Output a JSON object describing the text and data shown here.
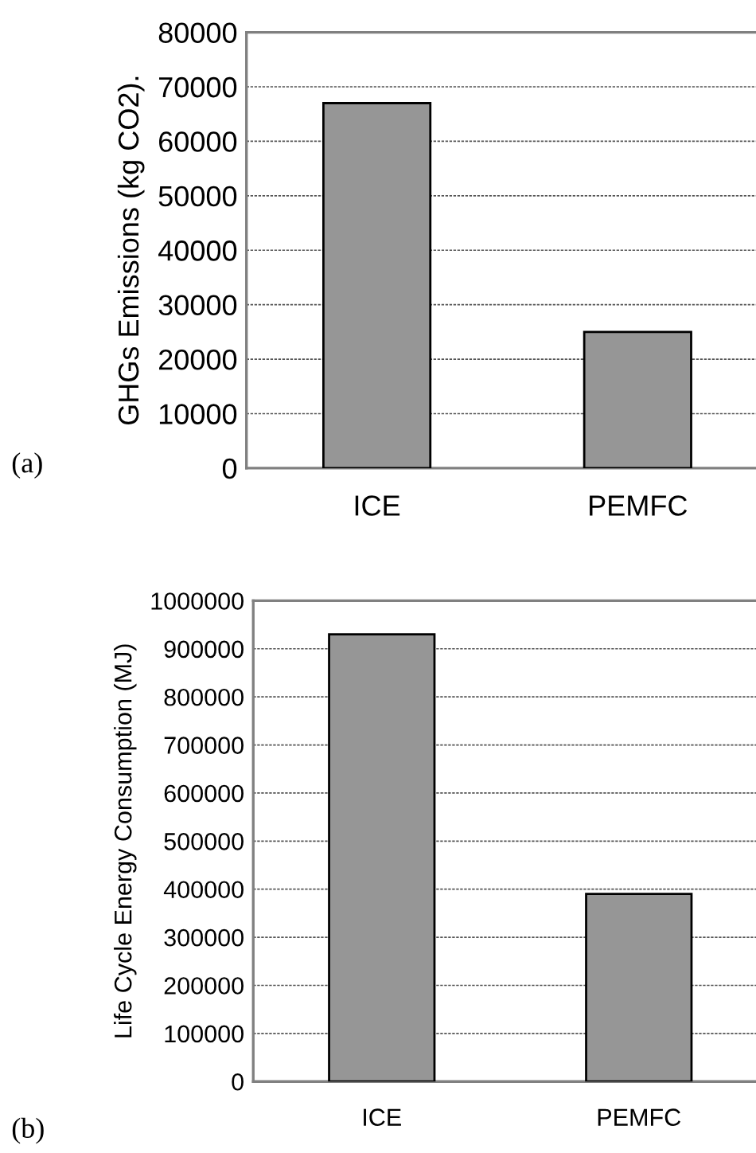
{
  "chart_data": [
    {
      "type": "bar",
      "ylabel": "GHGs Emissions (kg CO2).",
      "categories": [
        "ICE",
        "PEMFC"
      ],
      "values": [
        67000,
        25000
      ],
      "color": "#969696",
      "ylim": [
        0,
        80000
      ],
      "yticks": [
        0,
        10000,
        20000,
        30000,
        40000,
        50000,
        60000,
        70000,
        80000
      ],
      "grid": "y",
      "legend": false,
      "annotations": [
        "(a)"
      ]
    },
    {
      "type": "bar",
      "ylabel": "Life Cycle Energy Consumption (MJ)",
      "categories": [
        "ICE",
        "PEMFC"
      ],
      "values": [
        930000,
        390000
      ],
      "color": "#969696",
      "ylim": [
        0,
        1000000
      ],
      "yticks": [
        0,
        100000,
        200000,
        300000,
        400000,
        500000,
        600000,
        700000,
        800000,
        900000,
        1000000
      ],
      "grid": "y",
      "legend": false,
      "annotations": [
        "(b)"
      ]
    }
  ]
}
